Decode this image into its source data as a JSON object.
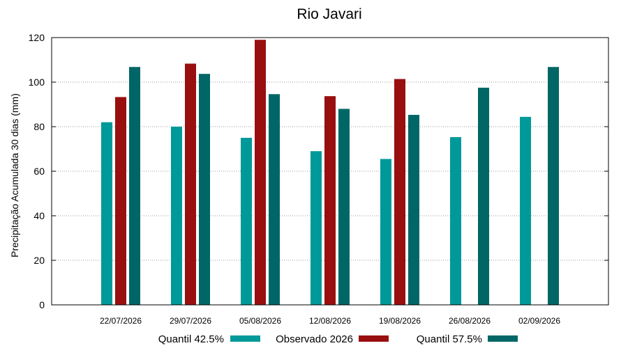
{
  "chart_data": {
    "type": "bar",
    "title": "Rio Javari",
    "xlabel": "",
    "ylabel": "Precipitação Acumulada 30 dias (mm)",
    "ylim": [
      0,
      120
    ],
    "yticks": [
      0,
      20,
      40,
      60,
      80,
      100,
      120
    ],
    "grid": true,
    "legend_position": "bottom",
    "categories": [
      "22/07/2026",
      "29/07/2026",
      "05/08/2026",
      "12/08/2026",
      "19/08/2026",
      "26/08/2026",
      "02/09/2026"
    ],
    "series": [
      {
        "name": "Quantil 42.5%",
        "color": "#009999",
        "values": [
          82,
          80,
          75,
          69,
          65.5,
          75.3,
          84.4
        ]
      },
      {
        "name": "Observado 2026",
        "color": "#990f0f",
        "values": [
          93.3,
          108.3,
          119,
          93.7,
          101.4,
          null,
          null
        ]
      },
      {
        "name": "Quantil 57.5%",
        "color": "#006666",
        "values": [
          106.8,
          103.7,
          94.6,
          88,
          85.3,
          97.5,
          106.8
        ]
      }
    ]
  }
}
